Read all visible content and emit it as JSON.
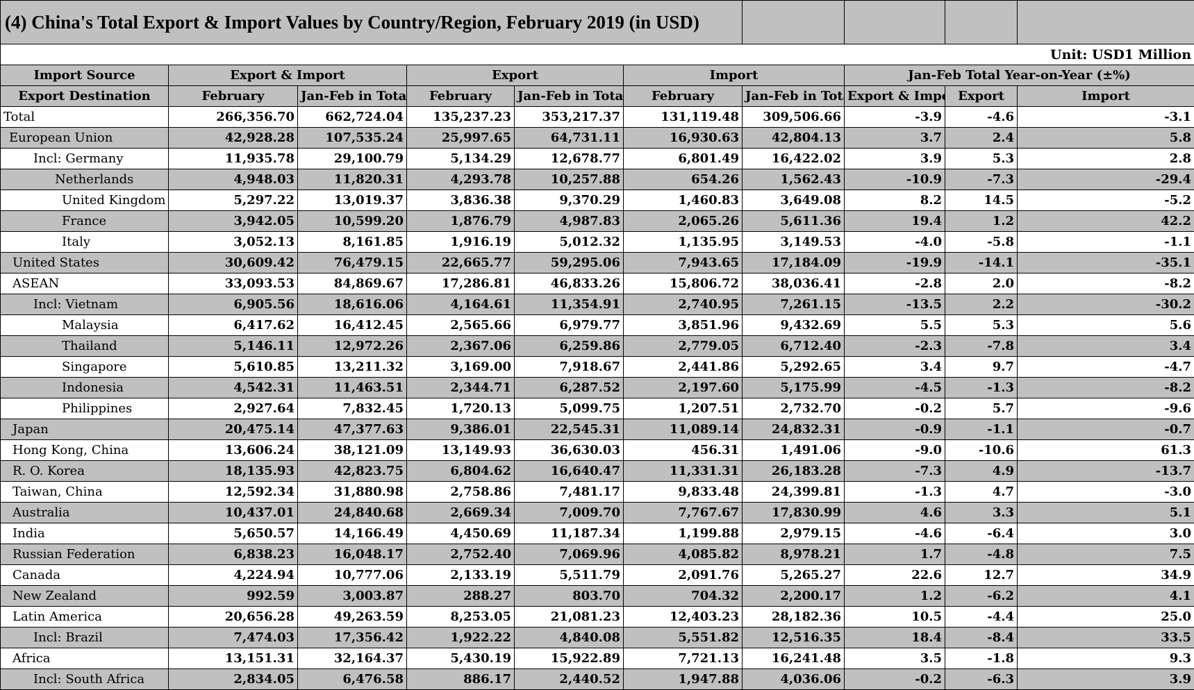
{
  "title": "(4) China's Total Export & Import Values by Country/Region, February 2019 (in USD)",
  "unit": "Unit: USD1 Million",
  "header1": {
    "col0": "Import Source",
    "export_import": "Export & Import",
    "export": "Export",
    "import": "Import",
    "yoy": "Jan-Feb Total Year-on-Year (±%)"
  },
  "header2": [
    "Export Destination",
    "February",
    "Jan-Feb in Total",
    "February",
    "Jan-Feb in Total",
    "February",
    "Jan-Feb in Total",
    "Export & Import",
    "Export",
    "Import"
  ],
  "rows": [
    {
      "name": "Total",
      "values": [
        "266,356.70",
        "662,724.04",
        "135,237.23",
        "353,217.37",
        "131,119.48",
        "309,506.66",
        "-3.9",
        "-4.6",
        "-3.1"
      ]
    },
    {
      "name": "European Union",
      "values": [
        "42,928.28",
        "107,535.24",
        "25,997.65",
        "64,731.11",
        "16,930.63",
        "42,804.13",
        "3.7",
        "2.4",
        "5.8"
      ]
    },
    {
      "name": "Incl: Germany",
      "values": [
        "11,935.78",
        "29,100.79",
        "5,134.29",
        "12,678.77",
        "6,801.49",
        "16,422.02",
        "3.9",
        "5.3",
        "2.8"
      ]
    },
    {
      "name": "Netherlands",
      "values": [
        "4,948.03",
        "11,820.31",
        "4,293.78",
        "10,257.88",
        "654.26",
        "1,562.43",
        "-10.9",
        "-7.3",
        "-29.4"
      ]
    },
    {
      "name": "United Kingdom",
      "values": [
        "5,297.22",
        "13,019.37",
        "3,836.38",
        "9,370.29",
        "1,460.83",
        "3,649.08",
        "8.2",
        "14.5",
        "-5.2"
      ]
    },
    {
      "name": "France",
      "values": [
        "3,942.05",
        "10,599.20",
        "1,876.79",
        "4,987.83",
        "2,065.26",
        "5,611.36",
        "19.4",
        "1.2",
        "42.2"
      ]
    },
    {
      "name": "Italy",
      "values": [
        "3,052.13",
        "8,161.85",
        "1,916.19",
        "5,012.32",
        "1,135.95",
        "3,149.53",
        "-4.0",
        "-5.8",
        "-1.1"
      ]
    },
    {
      "name": "United States",
      "values": [
        "30,609.42",
        "76,479.15",
        "22,665.77",
        "59,295.06",
        "7,943.65",
        "17,184.09",
        "-19.9",
        "-14.1",
        "-35.1"
      ]
    },
    {
      "name": "ASEAN",
      "values": [
        "33,093.53",
        "84,869.67",
        "17,286.81",
        "46,833.26",
        "15,806.72",
        "38,036.41",
        "-2.8",
        "2.0",
        "-8.2"
      ]
    },
    {
      "name": "Incl: Vietnam",
      "values": [
        "6,905.56",
        "18,616.06",
        "4,164.61",
        "11,354.91",
        "2,740.95",
        "7,261.15",
        "-13.5",
        "2.2",
        "-30.2"
      ]
    },
    {
      "name": "Malaysia",
      "values": [
        "6,417.62",
        "16,412.45",
        "2,565.66",
        "6,979.77",
        "3,851.96",
        "9,432.69",
        "5.5",
        "5.3",
        "5.6"
      ]
    },
    {
      "name": "Thailand",
      "values": [
        "5,146.11",
        "12,972.26",
        "2,367.06",
        "6,259.86",
        "2,779.05",
        "6,712.40",
        "-2.3",
        "-7.8",
        "3.4"
      ]
    },
    {
      "name": "Singapore",
      "values": [
        "5,610.85",
        "13,211.32",
        "3,169.00",
        "7,918.67",
        "2,441.86",
        "5,292.65",
        "3.4",
        "9.7",
        "-4.7"
      ]
    },
    {
      "name": "Indonesia",
      "values": [
        "4,542.31",
        "11,463.51",
        "2,344.71",
        "6,287.52",
        "2,197.60",
        "5,175.99",
        "-4.5",
        "-1.3",
        "-8.2"
      ]
    },
    {
      "name": "Philippines",
      "values": [
        "2,927.64",
        "7,832.45",
        "1,720.13",
        "5,099.75",
        "1,207.51",
        "2,732.70",
        "-0.2",
        "5.7",
        "-9.6"
      ]
    },
    {
      "name": "Japan",
      "values": [
        "20,475.14",
        "47,377.63",
        "9,386.01",
        "22,545.31",
        "11,089.14",
        "24,832.31",
        "-0.9",
        "-1.1",
        "-0.7"
      ]
    },
    {
      "name": "Hong Kong, China",
      "values": [
        "13,606.24",
        "38,121.09",
        "13,149.93",
        "36,630.03",
        "456.31",
        "1,491.06",
        "-9.0",
        "-10.6",
        "61.3"
      ]
    },
    {
      "name": "R. O. Korea",
      "values": [
        "18,135.93",
        "42,823.75",
        "6,804.62",
        "16,640.47",
        "11,331.31",
        "26,183.28",
        "-7.3",
        "4.9",
        "-13.7"
      ]
    },
    {
      "name": "Taiwan, China",
      "values": [
        "12,592.34",
        "31,880.98",
        "2,758.86",
        "7,481.17",
        "9,833.48",
        "24,399.81",
        "-1.3",
        "4.7",
        "-3.0"
      ]
    },
    {
      "name": "Australia",
      "values": [
        "10,437.01",
        "24,840.68",
        "2,669.34",
        "7,009.70",
        "7,767.67",
        "17,830.99",
        "4.6",
        "3.3",
        "5.1"
      ]
    },
    {
      "name": "India",
      "values": [
        "5,650.57",
        "14,166.49",
        "4,450.69",
        "11,187.34",
        "1,199.88",
        "2,979.15",
        "-4.6",
        "-6.4",
        "3.0"
      ]
    },
    {
      "name": "Russian Federation",
      "values": [
        "6,838.23",
        "16,048.17",
        "2,752.40",
        "7,069.96",
        "4,085.82",
        "8,978.21",
        "1.7",
        "-4.8",
        "7.5"
      ]
    },
    {
      "name": "Canada",
      "values": [
        "4,224.94",
        "10,777.06",
        "2,133.19",
        "5,511.79",
        "2,091.76",
        "5,265.27",
        "22.6",
        "12.7",
        "34.9"
      ]
    },
    {
      "name": "New Zealand",
      "values": [
        "992.59",
        "3,003.87",
        "288.27",
        "803.70",
        "704.32",
        "2,200.17",
        "1.2",
        "-6.2",
        "4.1"
      ]
    },
    {
      "name": "Latin America",
      "values": [
        "20,656.28",
        "49,263.59",
        "8,253.05",
        "21,081.23",
        "12,403.23",
        "28,182.36",
        "10.5",
        "-4.4",
        "25.0"
      ]
    },
    {
      "name": "Incl: Brazil",
      "values": [
        "7,474.03",
        "17,356.42",
        "1,922.22",
        "4,840.08",
        "5,551.82",
        "12,516.35",
        "18.4",
        "-8.4",
        "33.5"
      ]
    },
    {
      "name": "Africa",
      "values": [
        "13,151.31",
        "32,164.37",
        "5,430.19",
        "15,922.89",
        "7,721.13",
        "16,241.48",
        "3.5",
        "-1.8",
        "9.3"
      ]
    },
    {
      "name": "Incl: South Africa",
      "values": [
        "2,834.05",
        "6,476.58",
        "886.17",
        "2,440.52",
        "1,947.88",
        "4,036.06",
        "-0.2",
        "-6.3",
        "3.9"
      ]
    }
  ]
}
